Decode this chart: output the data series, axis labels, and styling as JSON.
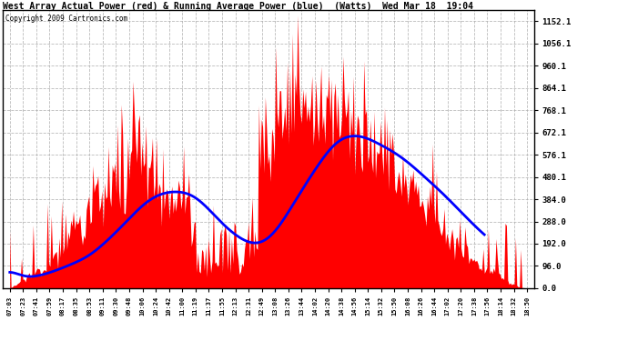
{
  "title": "West Array Actual Power (red) & Running Average Power (blue)  (Watts)  Wed Mar 18  19:04",
  "copyright": "Copyright 2009 Cartronics.com",
  "yticks": [
    0.0,
    96.0,
    192.0,
    288.0,
    384.0,
    480.1,
    576.1,
    672.1,
    768.1,
    864.1,
    960.1,
    1056.1,
    1152.1
  ],
  "ymax": 1200,
  "background_color": "#ffffff",
  "area_color": "#ff0000",
  "avg_color": "#0000ff",
  "grid_color": "#aaaaaa",
  "x_tick_labels": [
    "07:03",
    "07:23",
    "07:41",
    "07:59",
    "08:17",
    "08:35",
    "08:53",
    "09:11",
    "09:30",
    "09:48",
    "10:06",
    "10:24",
    "10:42",
    "11:00",
    "11:19",
    "11:37",
    "11:55",
    "12:13",
    "12:31",
    "12:49",
    "13:08",
    "13:26",
    "13:44",
    "14:02",
    "14:20",
    "14:38",
    "14:56",
    "15:14",
    "15:32",
    "15:50",
    "16:08",
    "16:26",
    "16:44",
    "17:02",
    "17:20",
    "17:38",
    "17:56",
    "18:14",
    "18:32",
    "18:50"
  ],
  "n_ticks": 40,
  "n_points": 400,
  "seed": 17
}
